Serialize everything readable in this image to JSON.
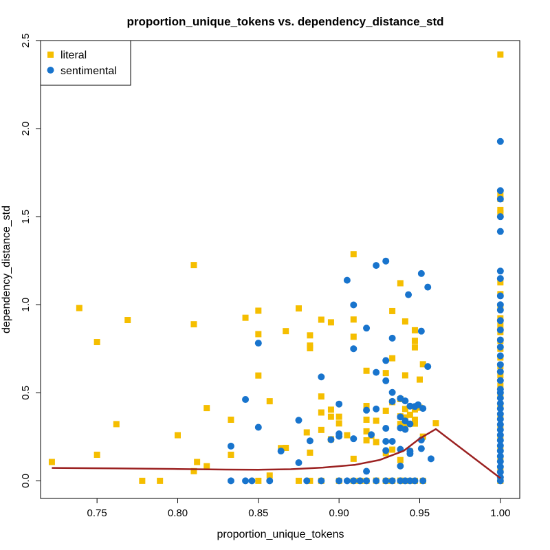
{
  "chart_data": {
    "type": "scatter",
    "title": "proportion_unique_tokens vs. dependency_distance_std",
    "xlabel": "proportion_unique_tokens",
    "ylabel": "dependency_distance_std",
    "xlim": [
      0.715,
      1.012
    ],
    "ylim": [
      -0.1,
      2.5
    ],
    "xticks": [
      0.75,
      0.8,
      0.85,
      0.9,
      0.95,
      1.0
    ],
    "xtick_labels": [
      "0.75",
      "0.80",
      "0.85",
      "0.90",
      "0.95",
      "1.00"
    ],
    "yticks": [
      0.0,
      0.5,
      1.0,
      1.5,
      2.0,
      2.5
    ],
    "ytick_labels": [
      "0.0",
      "0.5",
      "1.0",
      "1.5",
      "2.0",
      "2.5"
    ],
    "grid": false,
    "legend_position": "top-left",
    "series": [
      {
        "name": "literal",
        "marker": "square",
        "color": "#F5BE00",
        "points": [
          [
            0.722,
            0.107
          ],
          [
            0.739,
            0.981
          ],
          [
            0.75,
            0.788
          ],
          [
            0.75,
            0.148
          ],
          [
            0.762,
            0.322
          ],
          [
            0.769,
            0.913
          ],
          [
            0.778,
            0.0
          ],
          [
            0.789,
            0.0
          ],
          [
            0.8,
            0.259
          ],
          [
            0.81,
            1.225
          ],
          [
            0.81,
            0.889
          ],
          [
            0.81,
            0.055
          ],
          [
            0.812,
            0.107
          ],
          [
            0.818,
            0.083
          ],
          [
            0.818,
            0.413
          ],
          [
            0.833,
            0.347
          ],
          [
            0.833,
            0.148
          ],
          [
            0.842,
            0.926
          ],
          [
            0.85,
            0.966
          ],
          [
            0.85,
            0.833
          ],
          [
            0.85,
            0.598
          ],
          [
            0.85,
            0.0
          ],
          [
            0.857,
            0.452
          ],
          [
            0.857,
            0.03
          ],
          [
            0.864,
            0.186
          ],
          [
            0.867,
            0.85
          ],
          [
            0.867,
            0.187
          ],
          [
            0.875,
            0.979
          ],
          [
            0.875,
            0.0
          ],
          [
            0.88,
            0.275
          ],
          [
            0.882,
            0.826
          ],
          [
            0.882,
            0.768
          ],
          [
            0.882,
            0.753
          ],
          [
            0.882,
            0.16
          ],
          [
            0.882,
            0.0
          ],
          [
            0.889,
            0.915
          ],
          [
            0.889,
            0.479
          ],
          [
            0.889,
            0.388
          ],
          [
            0.889,
            0.289
          ],
          [
            0.889,
            0.0
          ],
          [
            0.895,
            0.9
          ],
          [
            0.895,
            0.404
          ],
          [
            0.895,
            0.364
          ],
          [
            0.895,
            0.236
          ],
          [
            0.9,
            0.364
          ],
          [
            0.9,
            0.326
          ],
          [
            0.9,
            0.0
          ],
          [
            0.905,
            0.259
          ],
          [
            0.909,
            1.287
          ],
          [
            0.909,
            0.916
          ],
          [
            0.909,
            0.818
          ],
          [
            0.909,
            0.125
          ],
          [
            0.909,
            0.0
          ],
          [
            0.913,
            0.0
          ],
          [
            0.917,
            0.625
          ],
          [
            0.917,
            0.425
          ],
          [
            0.917,
            0.347
          ],
          [
            0.917,
            0.281
          ],
          [
            0.917,
            0.23
          ],
          [
            0.917,
            0.0
          ],
          [
            0.92,
            0.256
          ],
          [
            0.923,
            0.341
          ],
          [
            0.923,
            0.22
          ],
          [
            0.923,
            0.001
          ],
          [
            0.929,
            0.612
          ],
          [
            0.929,
            0.398
          ],
          [
            0.929,
            0.157
          ],
          [
            0.929,
            0.0
          ],
          [
            0.933,
            0.964
          ],
          [
            0.933,
            0.696
          ],
          [
            0.933,
            0.447
          ],
          [
            0.933,
            0.177
          ],
          [
            0.933,
            0.0
          ],
          [
            0.938,
            1.122
          ],
          [
            0.938,
            0.464
          ],
          [
            0.938,
            0.366
          ],
          [
            0.938,
            0.323
          ],
          [
            0.938,
            0.118
          ],
          [
            0.938,
            0.001
          ],
          [
            0.941,
            0.905
          ],
          [
            0.941,
            0.599
          ],
          [
            0.941,
            0.408
          ],
          [
            0.941,
            0.36
          ],
          [
            0.941,
            0.315
          ],
          [
            0.941,
            0.0
          ],
          [
            0.944,
            0.375
          ],
          [
            0.944,
            0.166
          ],
          [
            0.947,
            0.855
          ],
          [
            0.947,
            0.795
          ],
          [
            0.947,
            0.758
          ],
          [
            0.947,
            0.405
          ],
          [
            0.947,
            0.347
          ],
          [
            0.947,
            0.325
          ],
          [
            0.947,
            0.0
          ],
          [
            0.95,
            0.575
          ],
          [
            0.95,
            0.415
          ],
          [
            0.952,
            0.662
          ],
          [
            0.952,
            0.251
          ],
          [
            0.952,
            0.0
          ],
          [
            0.96,
            0.327
          ],
          [
            1.0,
            2.421
          ],
          [
            1.0,
            1.622
          ],
          [
            1.0,
            1.601
          ],
          [
            1.0,
            1.538
          ],
          [
            1.0,
            1.52
          ],
          [
            1.0,
            1.127
          ],
          [
            1.0,
            1.06
          ],
          [
            1.0,
            0.98
          ],
          [
            1.0,
            0.923
          ],
          [
            1.0,
            0.882
          ],
          [
            1.0,
            0.845
          ],
          [
            1.0,
            0.795
          ],
          [
            1.0,
            0.75
          ],
          [
            1.0,
            0.7
          ],
          [
            1.0,
            0.65
          ],
          [
            1.0,
            0.6
          ],
          [
            1.0,
            0.54
          ],
          [
            1.0,
            0.48
          ],
          [
            1.0,
            0.42
          ],
          [
            1.0,
            0.36
          ],
          [
            1.0,
            0.3
          ],
          [
            1.0,
            0.24
          ],
          [
            1.0,
            0.18
          ],
          [
            1.0,
            0.12
          ],
          [
            1.0,
            0.06
          ],
          [
            1.0,
            0.0
          ]
        ]
      },
      {
        "name": "sentimental",
        "marker": "circle",
        "color": "#1874CD",
        "points": [
          [
            0.833,
            0.197
          ],
          [
            0.833,
            0.0
          ],
          [
            0.842,
            0.462
          ],
          [
            0.842,
            0.0
          ],
          [
            0.846,
            0.0
          ],
          [
            0.85,
            0.782
          ],
          [
            0.85,
            0.304
          ],
          [
            0.857,
            0.0
          ],
          [
            0.864,
            0.169
          ],
          [
            0.875,
            0.344
          ],
          [
            0.875,
            0.103
          ],
          [
            0.88,
            0.0
          ],
          [
            0.882,
            0.227
          ],
          [
            0.889,
            0.59
          ],
          [
            0.889,
            0.0
          ],
          [
            0.895,
            0.234
          ],
          [
            0.9,
            0.436
          ],
          [
            0.9,
            0.267
          ],
          [
            0.9,
            0.253
          ],
          [
            0.9,
            0.0
          ],
          [
            0.905,
            1.139
          ],
          [
            0.905,
            0.0
          ],
          [
            0.909,
            0.999
          ],
          [
            0.909,
            0.75
          ],
          [
            0.909,
            0.239
          ],
          [
            0.909,
            0.0
          ],
          [
            0.913,
            0.0
          ],
          [
            0.917,
            0.867
          ],
          [
            0.917,
            0.401
          ],
          [
            0.917,
            0.054
          ],
          [
            0.917,
            0.0
          ],
          [
            0.92,
            0.262
          ],
          [
            0.923,
            1.223
          ],
          [
            0.923,
            0.616
          ],
          [
            0.923,
            0.408
          ],
          [
            0.923,
            0.0
          ],
          [
            0.929,
            1.248
          ],
          [
            0.929,
            0.683
          ],
          [
            0.929,
            0.568
          ],
          [
            0.929,
            0.298
          ],
          [
            0.929,
            0.224
          ],
          [
            0.929,
            0.172
          ],
          [
            0.929,
            0.0
          ],
          [
            0.933,
            0.81
          ],
          [
            0.933,
            0.502
          ],
          [
            0.933,
            0.451
          ],
          [
            0.933,
            0.224
          ],
          [
            0.933,
            0.0
          ],
          [
            0.938,
            0.468
          ],
          [
            0.938,
            0.363
          ],
          [
            0.938,
            0.3
          ],
          [
            0.938,
            0.179
          ],
          [
            0.938,
            0.084
          ],
          [
            0.938,
            0.0
          ],
          [
            0.941,
            0.454
          ],
          [
            0.941,
            0.34
          ],
          [
            0.941,
            0.292
          ],
          [
            0.941,
            0.0
          ],
          [
            0.943,
            1.057
          ],
          [
            0.944,
            0.424
          ],
          [
            0.944,
            0.323
          ],
          [
            0.944,
            0.169
          ],
          [
            0.944,
            0.154
          ],
          [
            0.944,
            0.0
          ],
          [
            0.947,
            0.422
          ],
          [
            0.947,
            0.0
          ],
          [
            0.949,
            0.432
          ],
          [
            0.951,
            1.177
          ],
          [
            0.951,
            0.85
          ],
          [
            0.951,
            0.232
          ],
          [
            0.951,
            0.183
          ],
          [
            0.952,
            0.411
          ],
          [
            0.952,
            0.0
          ],
          [
            0.955,
            1.1
          ],
          [
            0.955,
            0.649
          ],
          [
            0.957,
            0.125
          ],
          [
            1.0,
            1.927
          ],
          [
            1.0,
            1.648
          ],
          [
            1.0,
            1.6
          ],
          [
            1.0,
            1.5
          ],
          [
            1.0,
            1.416
          ],
          [
            1.0,
            1.191
          ],
          [
            1.0,
            1.149
          ],
          [
            1.0,
            1.05
          ],
          [
            1.0,
            1.0
          ],
          [
            1.0,
            0.97
          ],
          [
            1.0,
            0.91
          ],
          [
            1.0,
            0.857
          ],
          [
            1.0,
            0.8
          ],
          [
            1.0,
            0.76
          ],
          [
            1.0,
            0.71
          ],
          [
            1.0,
            0.66
          ],
          [
            1.0,
            0.62
          ],
          [
            1.0,
            0.57
          ],
          [
            1.0,
            0.52
          ],
          [
            1.0,
            0.5
          ],
          [
            1.0,
            0.47
          ],
          [
            1.0,
            0.44
          ],
          [
            1.0,
            0.41
          ],
          [
            1.0,
            0.38
          ],
          [
            1.0,
            0.35
          ],
          [
            1.0,
            0.32
          ],
          [
            1.0,
            0.29
          ],
          [
            1.0,
            0.26
          ],
          [
            1.0,
            0.23
          ],
          [
            1.0,
            0.2
          ],
          [
            1.0,
            0.17
          ],
          [
            1.0,
            0.14
          ],
          [
            1.0,
            0.11
          ],
          [
            1.0,
            0.08
          ],
          [
            1.0,
            0.05
          ],
          [
            1.0,
            0.02
          ],
          [
            1.0,
            0.0
          ]
        ]
      }
    ],
    "trend_line": {
      "color": "#9B2121",
      "points": [
        [
          0.722,
          0.073
        ],
        [
          0.76,
          0.071
        ],
        [
          0.8,
          0.067
        ],
        [
          0.83,
          0.064
        ],
        [
          0.85,
          0.063
        ],
        [
          0.87,
          0.066
        ],
        [
          0.89,
          0.075
        ],
        [
          0.91,
          0.091
        ],
        [
          0.925,
          0.118
        ],
        [
          0.94,
          0.17
        ],
        [
          0.95,
          0.24
        ],
        [
          0.96,
          0.294
        ],
        [
          1.0,
          0.015
        ]
      ]
    }
  }
}
